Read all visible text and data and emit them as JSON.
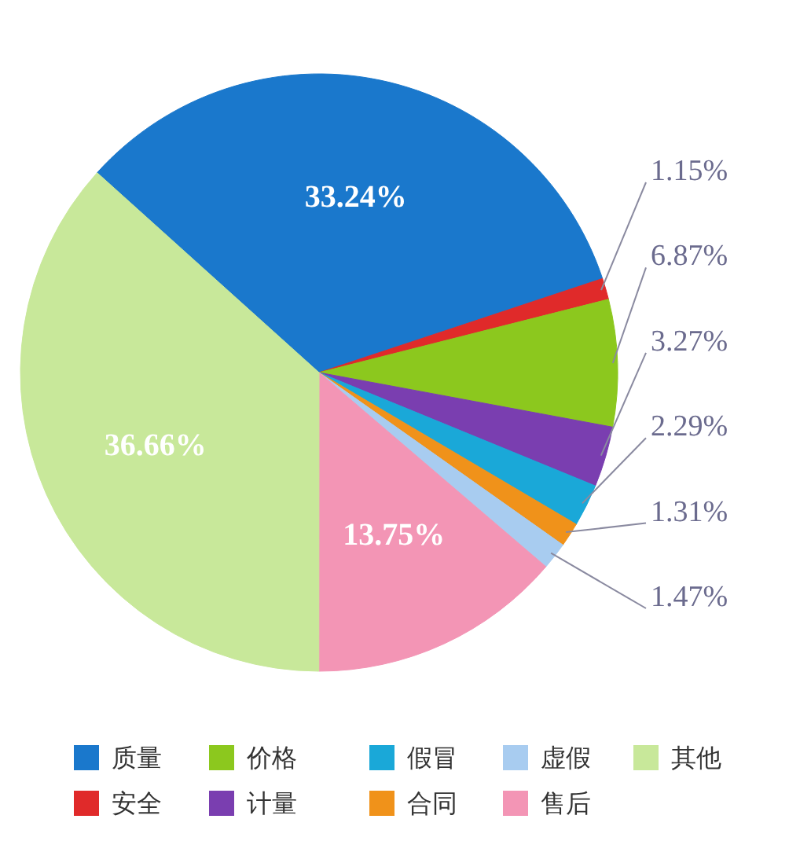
{
  "chart_data": {
    "type": "pie",
    "categories": [
      "质量",
      "安全",
      "价格",
      "计量",
      "假冒",
      "合同",
      "虚假",
      "售后",
      "其他"
    ],
    "values": [
      33.24,
      1.15,
      6.87,
      3.27,
      2.29,
      1.31,
      1.47,
      13.75,
      36.66
    ],
    "colors": [
      "#1a78cc",
      "#e02a2a",
      "#8cc81e",
      "#7a3eb0",
      "#1aa8d8",
      "#f0921a",
      "#a8ccf0",
      "#f395b5",
      "#c8e89a"
    ],
    "value_labels": [
      "33.24%",
      "1.15%",
      "6.87%",
      "3.27%",
      "2.29%",
      "1.31%",
      "1.47%",
      "13.75%",
      "36.66%"
    ],
    "legend": "bottom"
  }
}
